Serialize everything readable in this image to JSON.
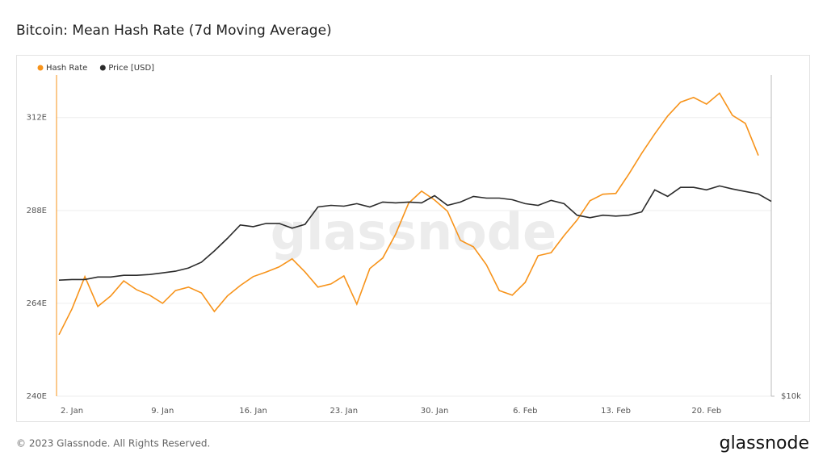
{
  "chart_data": {
    "type": "line",
    "title": "Bitcoin: Mean Hash Rate (7d Moving Average)",
    "watermark": "glassnode",
    "footer": "© 2023 Glassnode. All Rights Reserved.",
    "brand": "glassnode",
    "categories": [
      null,
      "2. Jan",
      null,
      null,
      null,
      null,
      null,
      null,
      "9. Jan",
      null,
      null,
      null,
      null,
      null,
      null,
      "16. Jan",
      null,
      null,
      null,
      null,
      null,
      null,
      "23. Jan",
      null,
      null,
      null,
      null,
      null,
      null,
      "30. Jan",
      null,
      null,
      null,
      null,
      null,
      null,
      "6. Feb",
      null,
      null,
      null,
      null,
      null,
      null,
      "13. Feb",
      null,
      null,
      null,
      null,
      null,
      null,
      "20. Feb",
      null,
      null,
      null,
      null,
      null
    ],
    "series": [
      {
        "name": "Hash Rate",
        "color": "#f7931a",
        "axis": "y",
        "values": [
          255.9,
          262.5,
          270.9,
          263.2,
          265.9,
          269.8,
          267.5,
          266.1,
          264.0,
          267.3,
          268.2,
          266.7,
          261.9,
          265.9,
          268.6,
          270.9,
          272.1,
          273.4,
          275.5,
          272.1,
          268.2,
          269.0,
          271.1,
          263.8,
          273.0,
          275.7,
          281.9,
          289.9,
          293.0,
          290.7,
          287.8,
          280.3,
          278.6,
          274.0,
          267.3,
          266.1,
          269.4,
          276.3,
          277.1,
          281.5,
          285.5,
          290.5,
          292.2,
          292.4,
          297.4,
          302.8,
          307.8,
          312.4,
          316.0,
          317.2,
          315.5,
          318.3,
          312.6,
          310.5,
          302.2,
          null
        ]
      },
      {
        "name": "Price [USD]",
        "color": "#2b2b2b",
        "axis": "y2",
        "values": [
          16500,
          16550,
          16550,
          16730,
          16730,
          16850,
          16850,
          16910,
          17030,
          17150,
          17390,
          17830,
          18720,
          19760,
          20940,
          20790,
          21080,
          21080,
          20650,
          21000,
          22630,
          22790,
          22710,
          22960,
          22630,
          23120,
          23040,
          23120,
          23040,
          23760,
          22790,
          23120,
          23690,
          23520,
          23520,
          23350,
          22960,
          22790,
          23290,
          22960,
          21840,
          21610,
          21840,
          21760,
          21840,
          22160,
          24370,
          23690,
          24630,
          24630,
          24370,
          24790,
          24460,
          24200,
          23940,
          23180
        ]
      }
    ],
    "ylim": [
      240,
      323
    ],
    "yticks": [
      {
        "value": 240,
        "label": "240E"
      },
      {
        "value": 264,
        "label": "264E"
      },
      {
        "value": 288,
        "label": "288E"
      },
      {
        "value": 312,
        "label": "312E"
      }
    ],
    "y2lim": [
      10000,
      40000
    ],
    "y2ticks": [
      {
        "value": 10000,
        "label": "$10k"
      }
    ],
    "y2log": true,
    "grid": true,
    "legend": "top-left"
  }
}
